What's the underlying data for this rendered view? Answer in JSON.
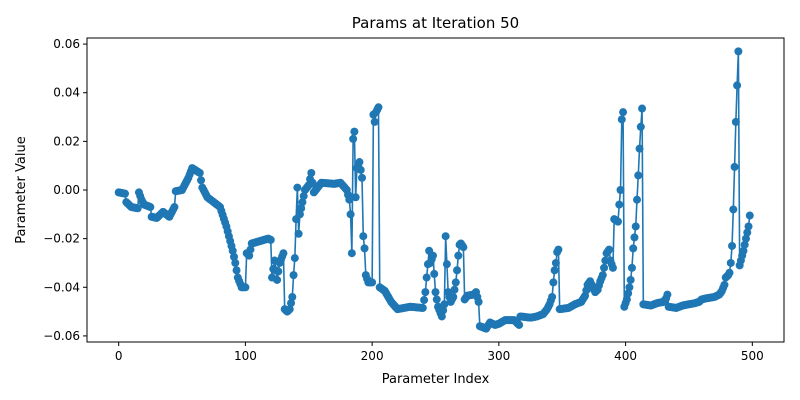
{
  "chart_data": {
    "type": "line",
    "title": "Params at Iteration 50",
    "xlabel": "Parameter Index",
    "ylabel": "Parameter Value",
    "xlim": [
      -25,
      525
    ],
    "ylim": [
      -0.0625,
      0.0625
    ],
    "xticks": [
      0,
      100,
      200,
      300,
      400,
      500
    ],
    "xtick_labels": [
      "0",
      "100",
      "200",
      "300",
      "400",
      "500"
    ],
    "yticks": [
      -0.06,
      -0.04,
      -0.02,
      0.0,
      0.02,
      0.04,
      0.06
    ],
    "ytick_labels": [
      "−0.06",
      "−0.04",
      "−0.02",
      "0.00",
      "0.02",
      "0.04",
      "0.06"
    ],
    "grid": false,
    "series": [
      {
        "color": "#1f77b4",
        "marker": "circle",
        "knots": [
          [
            0,
            -0.001
          ],
          [
            5,
            -0.0015
          ],
          [
            6,
            -0.005
          ],
          [
            10,
            -0.007
          ],
          [
            15,
            -0.0075
          ],
          [
            16,
            -0.001
          ],
          [
            18,
            -0.004
          ],
          [
            20,
            -0.006
          ],
          [
            25,
            -0.007
          ],
          [
            26,
            -0.011
          ],
          [
            30,
            -0.0115
          ],
          [
            35,
            -0.009
          ],
          [
            40,
            -0.011
          ],
          [
            44,
            -0.007
          ],
          [
            45,
            -0.0005
          ],
          [
            50,
            0.0
          ],
          [
            52,
            0.002
          ],
          [
            55,
            0.005
          ],
          [
            58,
            0.009
          ],
          [
            64,
            0.007
          ],
          [
            66,
            0.001
          ],
          [
            70,
            -0.003
          ],
          [
            75,
            -0.005
          ],
          [
            80,
            -0.007
          ],
          [
            85,
            -0.015
          ],
          [
            90,
            -0.025
          ],
          [
            92,
            -0.03
          ],
          [
            94,
            -0.036
          ],
          [
            97,
            -0.04
          ],
          [
            100,
            -0.04
          ],
          [
            101,
            -0.026
          ],
          [
            103,
            -0.027
          ],
          [
            105,
            -0.022
          ],
          [
            118,
            -0.02
          ],
          [
            120,
            -0.0205
          ],
          [
            121,
            -0.036
          ],
          [
            123,
            -0.029
          ],
          [
            125,
            -0.037
          ],
          [
            127,
            -0.03
          ],
          [
            130,
            -0.026
          ],
          [
            131,
            -0.049
          ],
          [
            133,
            -0.05
          ],
          [
            135,
            -0.049
          ],
          [
            137,
            -0.044
          ],
          [
            138,
            -0.035
          ],
          [
            139,
            -0.028
          ],
          [
            140,
            -0.012
          ],
          [
            141,
            0.001
          ],
          [
            142,
            -0.018
          ],
          [
            143,
            -0.01
          ],
          [
            145,
            -0.005
          ],
          [
            147,
            0.0
          ],
          [
            150,
            0.002
          ],
          [
            152,
            0.007
          ],
          [
            154,
            -0.001
          ],
          [
            160,
            0.003
          ],
          [
            170,
            0.0025
          ],
          [
            175,
            0.003
          ],
          [
            180,
            0.0
          ],
          [
            182,
            -0.004
          ],
          [
            183,
            -0.01
          ],
          [
            184,
            -0.026
          ],
          [
            185,
            0.021
          ],
          [
            186,
            0.024
          ],
          [
            187,
            -0.003
          ],
          [
            188,
            0.009
          ],
          [
            190,
            0.0115
          ],
          [
            192,
            0.005
          ],
          [
            193,
            -0.019
          ],
          [
            194,
            -0.024
          ],
          [
            195,
            -0.035
          ],
          [
            197,
            -0.038
          ],
          [
            200,
            -0.038
          ],
          [
            201,
            0.031
          ],
          [
            202,
            0.028
          ],
          [
            203,
            0.032
          ],
          [
            205,
            0.034
          ],
          [
            206,
            -0.04
          ],
          [
            210,
            -0.0415
          ],
          [
            215,
            -0.046
          ],
          [
            220,
            -0.049
          ],
          [
            230,
            -0.048
          ],
          [
            240,
            -0.0485
          ],
          [
            242,
            -0.042
          ],
          [
            243,
            -0.036
          ],
          [
            245,
            -0.025
          ],
          [
            246,
            -0.03
          ],
          [
            248,
            -0.027
          ],
          [
            250,
            -0.042
          ],
          [
            252,
            -0.048
          ],
          [
            255,
            -0.052
          ],
          [
            257,
            -0.047
          ],
          [
            258,
            -0.019
          ],
          [
            260,
            -0.042
          ],
          [
            262,
            -0.046
          ],
          [
            264,
            -0.044
          ],
          [
            266,
            -0.038
          ],
          [
            267,
            -0.033
          ],
          [
            268,
            -0.027
          ],
          [
            269,
            -0.0225
          ],
          [
            270,
            -0.022
          ],
          [
            272,
            -0.0235
          ],
          [
            273,
            -0.045
          ],
          [
            275,
            -0.0435
          ],
          [
            280,
            -0.043
          ],
          [
            282,
            -0.042
          ],
          [
            284,
            -0.046
          ],
          [
            285,
            -0.056
          ],
          [
            290,
            -0.057
          ],
          [
            293,
            -0.0545
          ],
          [
            297,
            -0.0555
          ],
          [
            300,
            -0.055
          ],
          [
            305,
            -0.0535
          ],
          [
            312,
            -0.0535
          ],
          [
            316,
            -0.0555
          ],
          [
            317,
            -0.052
          ],
          [
            325,
            -0.0525
          ],
          [
            330,
            -0.052
          ],
          [
            335,
            -0.051
          ],
          [
            338,
            -0.049
          ],
          [
            340,
            -0.047
          ],
          [
            342,
            -0.044
          ],
          [
            343,
            -0.038
          ],
          [
            344,
            -0.033
          ],
          [
            345,
            -0.03
          ],
          [
            346,
            -0.0255
          ],
          [
            347,
            -0.0245
          ],
          [
            348,
            -0.049
          ],
          [
            355,
            -0.0485
          ],
          [
            360,
            -0.047
          ],
          [
            365,
            -0.046
          ],
          [
            368,
            -0.0435
          ],
          [
            370,
            -0.039
          ],
          [
            372,
            -0.0375
          ],
          [
            374,
            -0.04
          ],
          [
            376,
            -0.042
          ],
          [
            378,
            -0.041
          ],
          [
            380,
            -0.0375
          ],
          [
            382,
            -0.035
          ],
          [
            383,
            -0.032
          ],
          [
            385,
            -0.026
          ],
          [
            387,
            -0.0245
          ],
          [
            388,
            -0.029
          ],
          [
            390,
            -0.032
          ],
          [
            391,
            -0.012
          ],
          [
            394,
            -0.013
          ],
          [
            395,
            -0.006
          ],
          [
            396,
            0.0
          ],
          [
            397,
            0.029
          ],
          [
            398,
            0.032
          ],
          [
            399,
            -0.048
          ],
          [
            401,
            -0.045
          ],
          [
            403,
            -0.04
          ],
          [
            404,
            -0.037
          ],
          [
            405,
            -0.032
          ],
          [
            406,
            -0.024
          ],
          [
            408,
            -0.015
          ],
          [
            409,
            -0.004
          ],
          [
            410,
            0.006
          ],
          [
            411,
            0.017
          ],
          [
            412,
            0.026
          ],
          [
            413,
            0.0335
          ],
          [
            414,
            -0.047
          ],
          [
            420,
            -0.0475
          ],
          [
            425,
            -0.0465
          ],
          [
            430,
            -0.046
          ],
          [
            432,
            -0.0445
          ],
          [
            433,
            -0.043
          ],
          [
            434,
            -0.048
          ],
          [
            440,
            -0.0485
          ],
          [
            445,
            -0.0475
          ],
          [
            450,
            -0.047
          ],
          [
            455,
            -0.0465
          ],
          [
            458,
            -0.046
          ],
          [
            460,
            -0.045
          ],
          [
            464,
            -0.0445
          ],
          [
            470,
            -0.044
          ],
          [
            474,
            -0.043
          ],
          [
            476,
            -0.0415
          ],
          [
            478,
            -0.039
          ],
          [
            479,
            -0.036
          ],
          [
            481,
            -0.035
          ],
          [
            482,
            -0.034
          ],
          [
            483,
            -0.03
          ],
          [
            484,
            -0.023
          ],
          [
            485,
            -0.008
          ],
          [
            486,
            0.0095
          ],
          [
            487,
            0.028
          ],
          [
            488,
            0.043
          ],
          [
            489,
            0.057
          ],
          [
            490,
            -0.031
          ],
          [
            491,
            -0.029
          ],
          [
            493,
            -0.025
          ],
          [
            495,
            -0.02
          ],
          [
            497,
            -0.015
          ],
          [
            498,
            -0.0105
          ]
        ]
      }
    ]
  }
}
